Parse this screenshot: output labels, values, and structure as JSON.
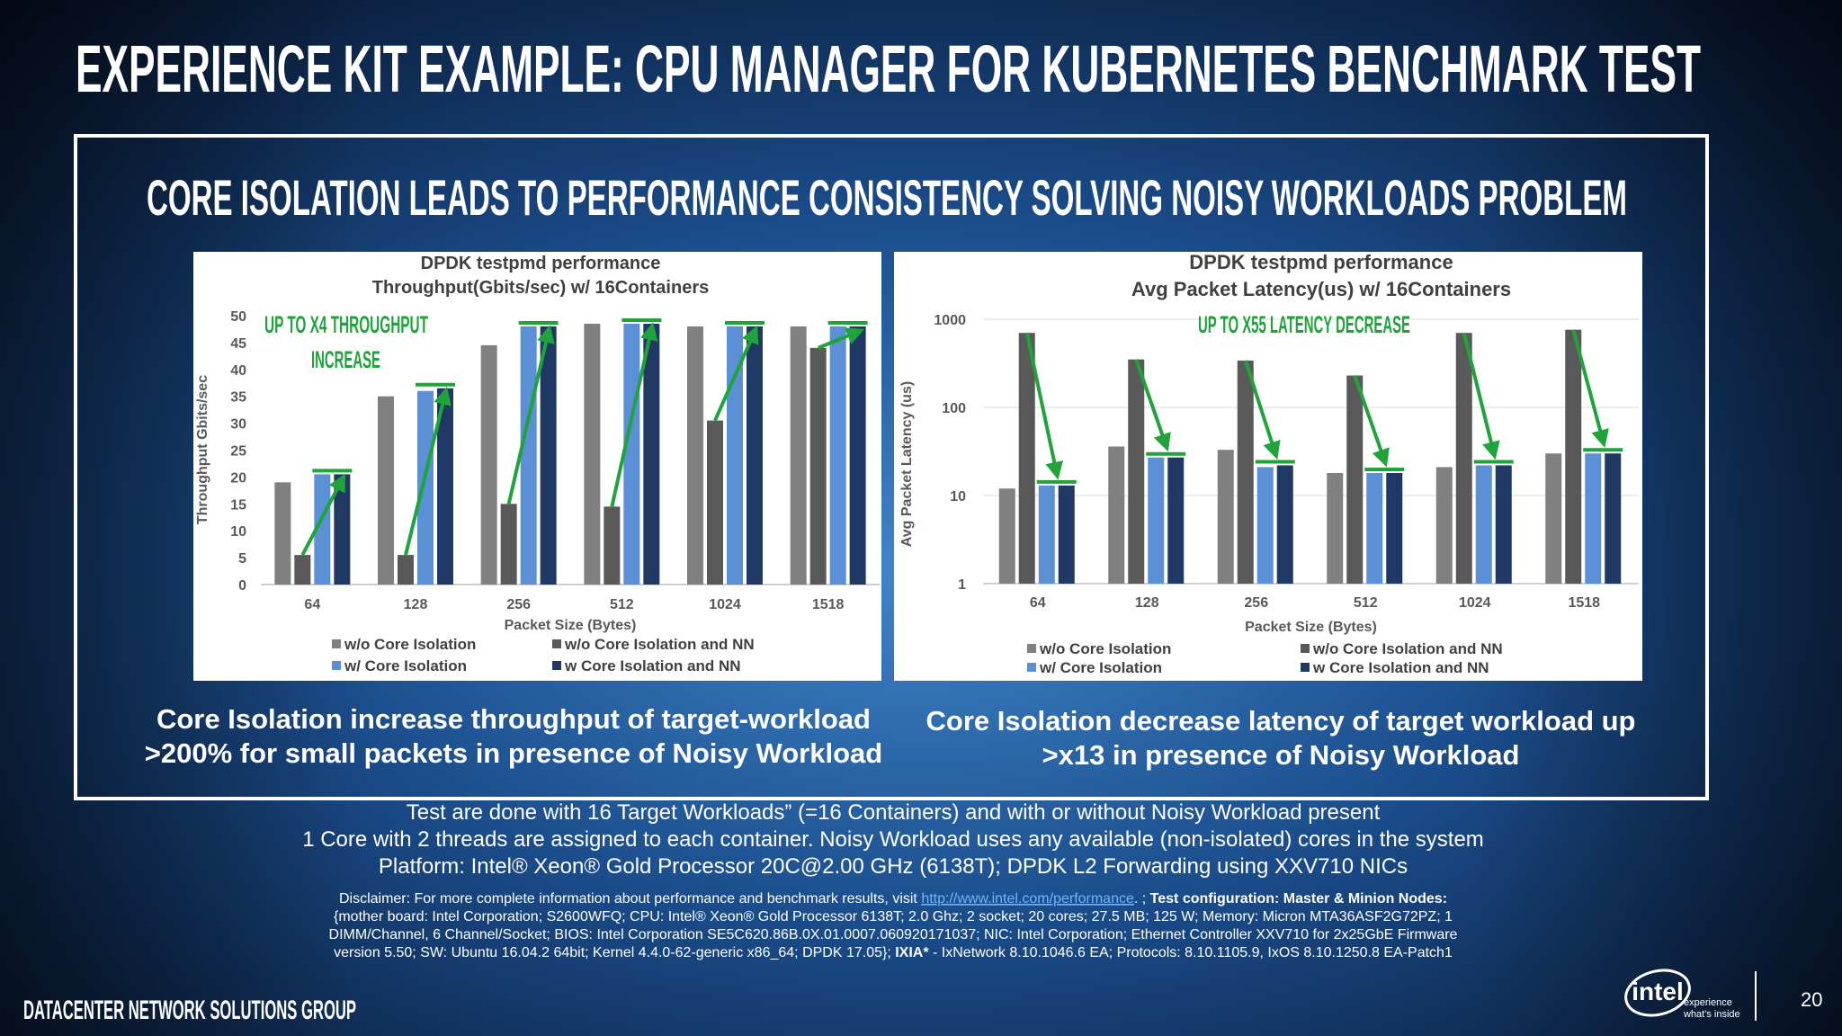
{
  "title": "EXPERIENCE KIT EXAMPLE: CPU MANAGER FOR KUBERNETES BENCHMARK TEST",
  "subtitle": "CORE ISOLATION LEADS TO PERFORMANCE CONSISTENCY SOLVING NOISY WORKLOADS PROBLEM",
  "chart_data": [
    {
      "type": "bar",
      "title": "DPDK testpmd performance",
      "subtitle": "Throughput(Gbits/sec) w/ 16Containers",
      "x_label": "Packet Size (Bytes)",
      "y_label": "Throughput Gbits/sec",
      "annotation": [
        "UP TO X4 THROUGHPUT",
        "INCREASE"
      ],
      "categories": [
        "64",
        "128",
        "256",
        "512",
        "1024",
        "1518"
      ],
      "series": [
        {
          "name": "w/o Core Isolation",
          "color": "#808080",
          "values": [
            19,
            35,
            44.5,
            48.5,
            48,
            48
          ]
        },
        {
          "name": "w/o Core Isolation and NN",
          "color": "#595959",
          "values": [
            5.5,
            5.5,
            15,
            14.5,
            30.5,
            44
          ]
        },
        {
          "name": "w/ Core Isolation",
          "color": "#5b8fd6",
          "values": [
            20.5,
            36,
            48,
            48.5,
            48,
            48
          ]
        },
        {
          "name": "w Core Isolation and NN",
          "color": "#1f3864",
          "values": [
            20.5,
            36.5,
            48,
            48.5,
            48,
            48
          ]
        }
      ],
      "ylim": [
        0,
        50
      ],
      "yticks": [
        0,
        5,
        10,
        15,
        20,
        25,
        30,
        35,
        40,
        45,
        50
      ],
      "grid": false,
      "log_scale": false
    },
    {
      "type": "bar",
      "title": "DPDK testpmd performance",
      "subtitle": "Avg Packet Latency(us) w/ 16Containers",
      "x_label": "Packet Size (Bytes)",
      "y_label": "Avg Packet Latency (us)",
      "annotation": [
        "UP TO X55 LATENCY DECREASE"
      ],
      "categories": [
        "64",
        "128",
        "256",
        "512",
        "1024",
        "1518"
      ],
      "series": [
        {
          "name": "w/o Core Isolation",
          "color": "#808080",
          "values": [
            12,
            36,
            33,
            18,
            21,
            30
          ]
        },
        {
          "name": "w/o Core Isolation and NN",
          "color": "#595959",
          "values": [
            700,
            350,
            340,
            230,
            700,
            760
          ]
        },
        {
          "name": "w/ Core Isolation",
          "color": "#5b8fd6",
          "values": [
            13,
            27,
            21,
            18,
            22,
            30
          ]
        },
        {
          "name": "w Core Isolation and NN",
          "color": "#1f3864",
          "values": [
            13,
            27,
            22,
            18,
            22,
            30
          ]
        }
      ],
      "ylim": [
        1,
        1000
      ],
      "yticks": [
        1,
        10,
        100,
        1000
      ],
      "grid": true,
      "log_scale": true
    }
  ],
  "captions": [
    [
      "Core Isolation increase throughput of target-workload",
      ">200% for small packets in presence of Noisy Workload"
    ],
    [
      "Core Isolation decrease latency of target workload up",
      ">x13 in presence of Noisy Workload"
    ]
  ],
  "notes": [
    "Test are done with 16 Target Workloads” (=16 Containers) and with or without Noisy Workload present",
    "1 Core with 2 threads are assigned to each container. Noisy Workload uses any available (non-isolated) cores in the system",
    "Platform: Intel® Xeon® Gold Processor 20C@2.00 GHz (6138T); DPDK L2 Forwarding using XXV710 NICs"
  ],
  "disclaimer": [
    [
      "Disclaimer: For more complete information about performance and benchmark results, visit ",
      "http://www.intel.com/performance",
      ". ; ",
      "Test configuration: Master & Minion Nodes:"
    ],
    [
      "{mother board: Intel Corporation; S2600WFQ; CPU: Intel® Xeon® Gold Processor 6138T; 2.0 Ghz; 2 socket; 20 cores; 27.5 MB; 125 W; Memory: Micron MTA36ASF2G72PZ; 1"
    ],
    [
      "DIMM/Channel, 6 Channel/Socket; BIOS: Intel Corporation SE5C620.86B.0X.01.0007.060920171037; NIC: Intel Corporation; Ethernet Controller XXV710 for 2x25GbE Firmware"
    ],
    [
      "version 5.50; SW: Ubuntu 16.04.2 64bit; Kernel 4.4.0-62-generic x86_64; DPDK 17.05}; ",
      "IXIA*",
      " - IxNetwork 8.10.1046.6 EA; Protocols: 8.10.1105.9, IxOS 8.10.1250.8 EA-Patch1"
    ]
  ],
  "footer": "DATACENTER NETWORK SOLUTIONS GROUP",
  "logo": {
    "brand": "intel",
    "tagline": [
      "experience",
      "what's inside"
    ]
  },
  "page_number": "20"
}
